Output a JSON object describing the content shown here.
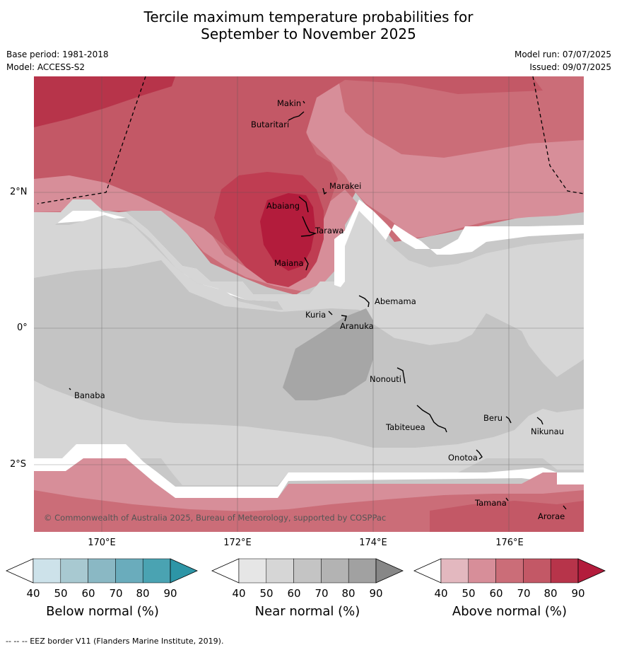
{
  "title_line1": "Tercile maximum temperature probabilities for",
  "title_line2": "September to November 2025",
  "base_period": "Base period: 1981-2018",
  "model": "Model: ACCESS-S2",
  "model_run": "Model run: 07/07/2025",
  "issued": "Issued: 09/07/2025",
  "copyright": "© Commonwealth of Australia 2025, Bureau of Meteorology, supported by COSPPac",
  "footer": "--  --  -- EEZ border V11 (Flanders Marine Institute, 2019).",
  "lon_labels": [
    "170°E",
    "172°E",
    "174°E",
    "176°E"
  ],
  "lat_labels": [
    "2°N",
    "0°",
    "2°S"
  ],
  "places": [
    "Makin",
    "Butaritari",
    "Marakei",
    "Abaiang",
    "Tarawa",
    "Maiana",
    "Abemama",
    "Kuria",
    "Aranuka",
    "Nonouti",
    "Banaba",
    "Beru",
    "Tabiteuea",
    "Nikunau",
    "Onotoa",
    "Tamana",
    "Arorae"
  ],
  "colorbars": [
    {
      "title": "Below normal (%)",
      "ticks": [
        "40",
        "50",
        "60",
        "70",
        "80",
        "90"
      ],
      "colors": [
        "#ffffff",
        "#cde2ea",
        "#a8c9d1",
        "#8ab8c4",
        "#6aacbc",
        "#4aa3b2",
        "#2d95a6"
      ]
    },
    {
      "title": "Near normal (%)",
      "ticks": [
        "40",
        "50",
        "60",
        "70",
        "80",
        "90"
      ],
      "colors": [
        "#ffffff",
        "#e6e6e6",
        "#d6d6d6",
        "#c4c4c4",
        "#b3b3b3",
        "#a1a1a1",
        "#878787"
      ]
    },
    {
      "title": "Above normal (%)",
      "ticks": [
        "40",
        "50",
        "60",
        "70",
        "80",
        "90"
      ],
      "colors": [
        "#ffffff",
        "#e3b8bf",
        "#d78e99",
        "#cb6d78",
        "#c35866",
        "#b7344a",
        "#b31c3c"
      ]
    }
  ]
}
